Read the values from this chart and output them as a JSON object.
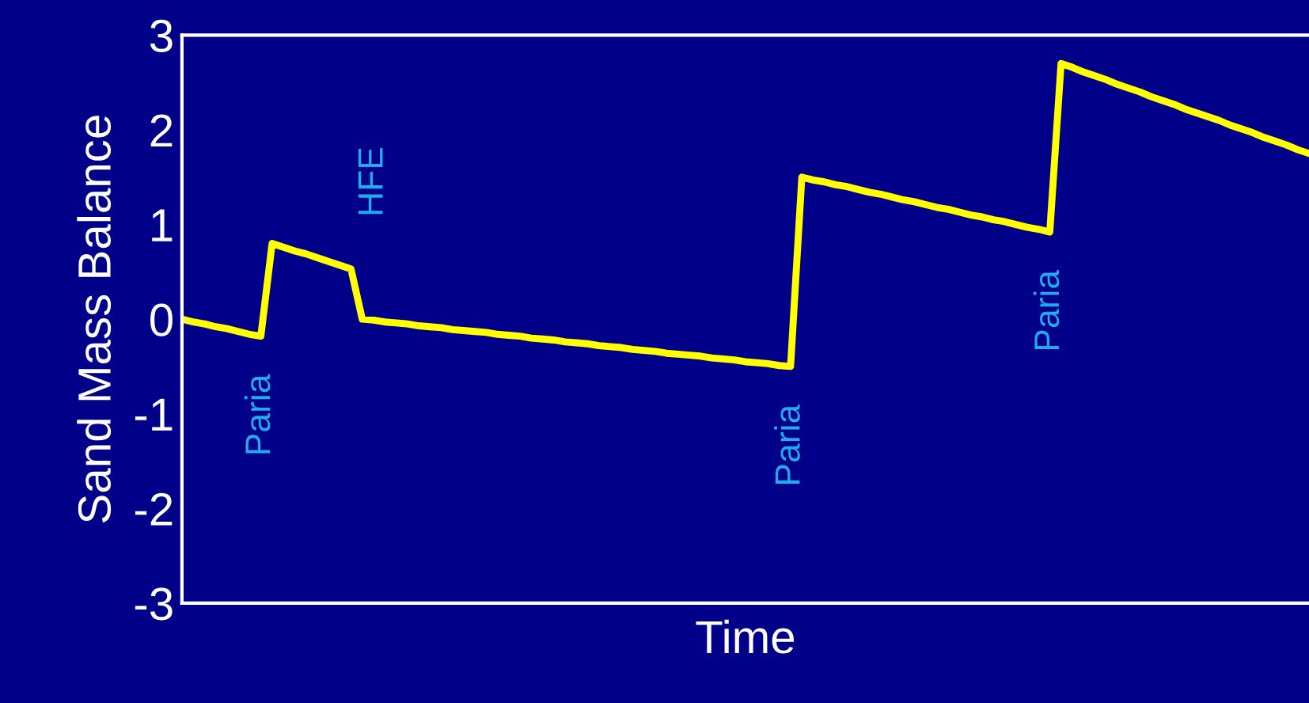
{
  "chart_data": {
    "type": "line",
    "xlabel": "Time",
    "ylabel": "Sand Mass Balance",
    "categories": [
      null,
      null,
      null,
      null,
      null,
      null,
      null,
      null,
      null,
      null,
      null,
      null,
      null,
      null,
      null,
      null,
      null,
      null,
      null,
      null,
      null,
      null,
      null,
      null,
      null,
      null,
      null,
      null,
      null,
      null,
      null,
      null,
      null,
      null,
      null,
      null,
      null,
      null,
      null,
      null,
      null,
      null,
      null,
      null,
      null,
      null,
      null,
      null,
      null,
      null,
      null,
      null,
      null,
      null,
      null,
      null,
      null,
      null,
      null,
      null,
      null,
      null,
      null,
      null,
      null,
      null,
      null,
      null,
      null,
      null,
      null,
      null,
      null,
      null,
      null,
      null,
      null,
      null,
      null,
      null,
      null,
      null,
      null,
      null,
      null,
      null,
      null,
      null,
      null,
      null,
      null,
      null,
      null,
      null,
      null,
      null,
      null,
      null,
      null,
      null,
      null
    ],
    "series": [
      {
        "color": "#ffff00",
        "values": [
          0,
          -0.03,
          -0.05,
          -0.08,
          -0.1,
          -0.13,
          -0.16,
          -0.18,
          0.8,
          0.76,
          0.72,
          0.69,
          0.65,
          0.61,
          0.57,
          0.53,
          0,
          -0.01,
          -0.03,
          -0.04,
          -0.05,
          -0.07,
          -0.08,
          -0.09,
          -0.11,
          -0.12,
          -0.13,
          -0.14,
          -0.16,
          -0.17,
          -0.18,
          -0.2,
          -0.21,
          -0.22,
          -0.24,
          -0.25,
          -0.26,
          -0.28,
          -0.29,
          -0.3,
          -0.32,
          -0.33,
          -0.34,
          -0.36,
          -0.37,
          -0.38,
          -0.39,
          -0.41,
          -0.42,
          -0.43,
          -0.45,
          -0.46,
          -0.47,
          -0.49,
          -0.5,
          1.5,
          1.47,
          1.45,
          1.42,
          1.4,
          1.37,
          1.34,
          1.32,
          1.29,
          1.26,
          1.24,
          1.21,
          1.18,
          1.16,
          1.13,
          1.1,
          1.08,
          1.05,
          1.03,
          1.0,
          0.97,
          0.95,
          0.92,
          2.7,
          2.66,
          2.61,
          2.57,
          2.53,
          2.48,
          2.44,
          2.4,
          2.35,
          2.31,
          2.27,
          2.22,
          2.18,
          2.14,
          2.1,
          2.05,
          2.01,
          1.97,
          1.92,
          1.88,
          1.84,
          1.79,
          1.75
        ]
      }
    ],
    "ylim": [
      -3,
      3
    ],
    "yticks": [
      {
        "value": -3,
        "label": "-3"
      },
      {
        "value": -2,
        "label": "-2"
      },
      {
        "value": -1,
        "label": "-1"
      },
      0,
      1,
      2,
      3
    ],
    "tick_labels": "y",
    "marker": "none",
    "line_style": "solid",
    "annotations": [
      "Paria",
      "HFE",
      "Paria",
      "Paria"
    ]
  }
}
